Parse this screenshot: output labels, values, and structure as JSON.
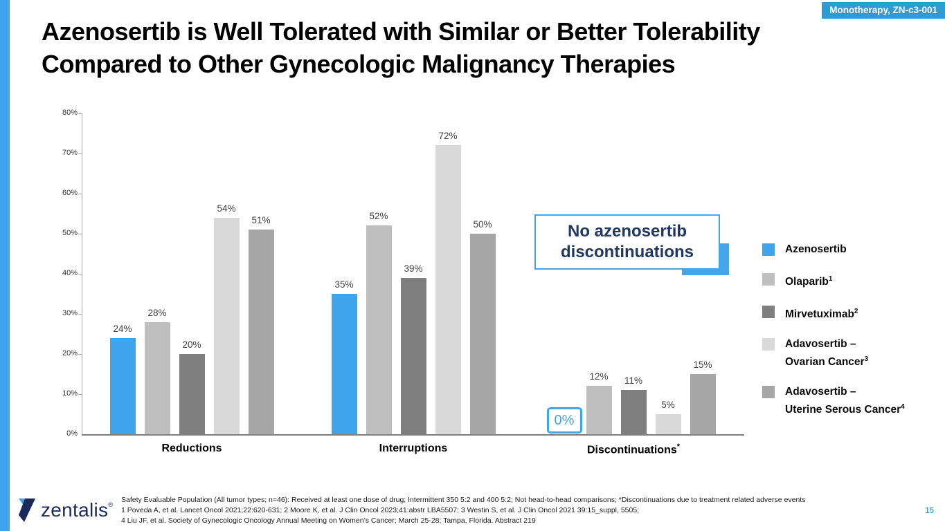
{
  "slide": {
    "badge": "Monotherapy, ZN-c3-001",
    "title_line1": "Azenosertib is Well Tolerated with Similar or Better Tolerability",
    "title_line2": "Compared to Other Gynecologic Malignancy Therapies",
    "page_number": "15",
    "logo_text": "zentalis",
    "logo_trademark": "®"
  },
  "colors": {
    "accent_blue": "#3EA5EC",
    "badge_blue": "#2E9BD6",
    "callout_blue": "#45A5E9",
    "navy": "#1F3864",
    "logo_navy": "#1B2A5E",
    "axis_gray": "#7f7f7f"
  },
  "callout": {
    "line1": "No azenosertib",
    "line2": "discontinuations"
  },
  "chart_data": {
    "type": "bar",
    "title": "",
    "xlabel": "",
    "ylabel": "",
    "ylim": [
      0,
      80
    ],
    "ytick_step": 10,
    "ytick_suffix": "%",
    "grid": false,
    "legend_position": "right",
    "categories": [
      {
        "label": "Reductions",
        "sup": ""
      },
      {
        "label": "Interruptions",
        "sup": ""
      },
      {
        "label": "Discontinuations",
        "sup": "*"
      }
    ],
    "series": [
      {
        "name": "Azenosertib",
        "sup": "",
        "color": "#3EA5EC",
        "values": [
          24,
          35,
          0
        ]
      },
      {
        "name": "Olaparib",
        "sup": "1",
        "color": "#BFBFBF",
        "values": [
          28,
          52,
          12
        ]
      },
      {
        "name": "Mirvetuximab",
        "sup": "2",
        "color": "#7F7F7F",
        "values": [
          20,
          39,
          11
        ]
      },
      {
        "name": "Adavosertib – Ovarian Cancer",
        "sup": "3",
        "color": "#D9D9D9",
        "values": [
          54,
          72,
          5
        ]
      },
      {
        "name": "Adavosertib – Uterine Serous Cancer",
        "sup": "4",
        "color": "#A6A6A6",
        "values": [
          51,
          50,
          15
        ]
      }
    ],
    "zero_box": {
      "series_index": 0,
      "category_index": 2,
      "label": "0%"
    }
  },
  "legend": {
    "items": [
      {
        "line1": "Azenosertib",
        "line2": "",
        "sup": "",
        "color": "#3EA5EC"
      },
      {
        "line1": "Olaparib",
        "line2": "",
        "sup": "1",
        "color": "#BFBFBF"
      },
      {
        "line1": "Mirvetuximab",
        "line2": "",
        "sup": "2",
        "color": "#7F7F7F"
      },
      {
        "line1": "Adavosertib –",
        "line2": "Ovarian Cancer",
        "sup": "3",
        "color": "#D9D9D9"
      },
      {
        "line1": "Adavosertib –",
        "line2": "Uterine Serous Cancer",
        "sup": "4",
        "color": "#A6A6A6"
      }
    ]
  },
  "footer": {
    "line1": "Safety Evaluable Population (All tumor types; n=46): Received at least one dose of drug; Intermittent 350 5:2 and 400 5:2; Not head-to-head comparisons; *Discontinuations due to treatment related adverse events",
    "line2": "1 Poveda A, et al. Lancet Oncol 2021;22:620-631; 2 Moore K, et al. J Clin Oncol 2023;41:abstr LBA5507; 3 Westin S, et al. J Clin Oncol 2021 39:15_suppl, 5505;",
    "line3": "4 Liu JF, et al. Society of Gynecologic Oncology Annual Meeting on Women’s Cancer; March 25-28; Tampa, Florida. Abstract 219"
  }
}
